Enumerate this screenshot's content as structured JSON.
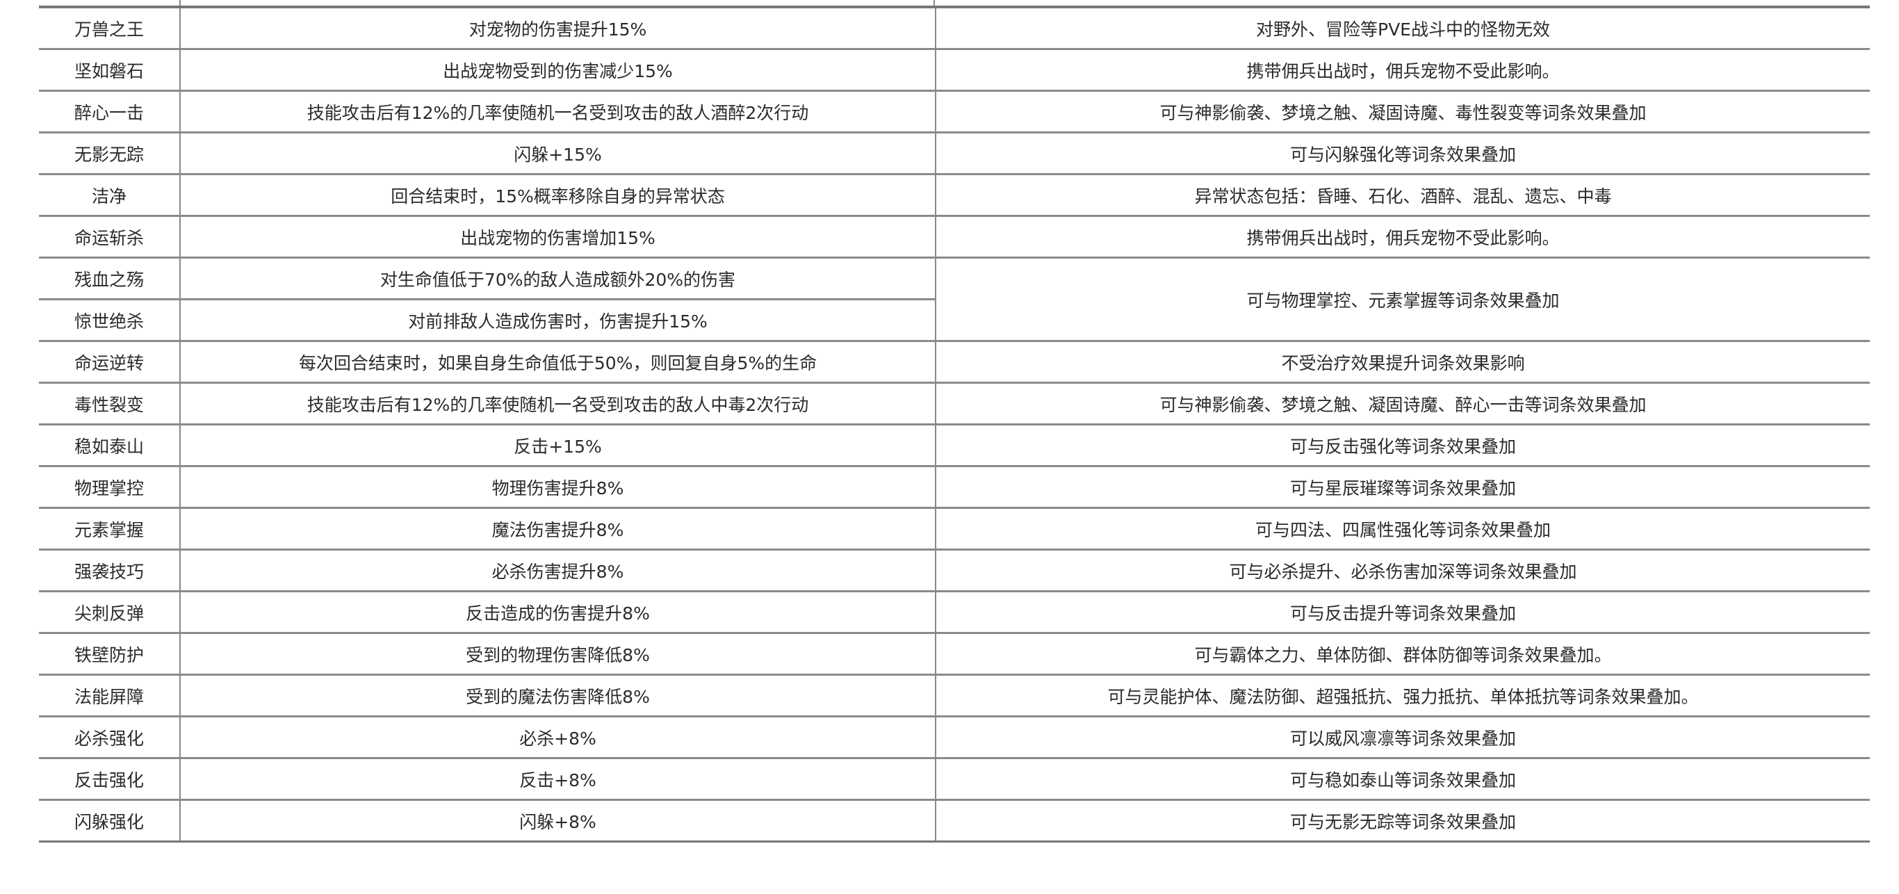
{
  "table": {
    "rows": [
      {
        "name": "万兽之王",
        "effect": "对宠物的伤害提升15%",
        "note": "对野外、冒险等PVE战斗中的怪物无效"
      },
      {
        "name": "坚如磐石",
        "effect": "出战宠物受到的伤害减少15%",
        "note": "携带佣兵出战时，佣兵宠物不受此影响。"
      },
      {
        "name": "醉心一击",
        "effect": "技能攻击后有12%的几率使随机一名受到攻击的敌人酒醉2次行动",
        "note": "可与神影偷袭、梦境之触、凝固诗魔、毒性裂变等词条效果叠加"
      },
      {
        "name": "无影无踪",
        "effect": "闪躲+15%",
        "note": "可与闪躲强化等词条效果叠加"
      },
      {
        "name": "洁净",
        "effect": "回合结束时，15%概率移除自身的异常状态",
        "note": "异常状态包括：昏睡、石化、酒醉、混乱、遗忘、中毒"
      },
      {
        "name": "命运斩杀",
        "effect": "出战宠物的伤害增加15%",
        "note": "携带佣兵出战时，佣兵宠物不受此影响。"
      },
      {
        "name": "残血之殇",
        "effect": "对生命值低于70%的敌人造成额外20%的伤害",
        "note": "可与物理掌控、元素掌握等词条效果叠加"
      },
      {
        "name": "惊世绝杀",
        "effect": "对前排敌人造成伤害时，伤害提升15%",
        "note": null
      },
      {
        "name": "命运逆转",
        "effect": "每次回合结束时，如果自身生命值低于50%，则回复自身5%的生命",
        "note": "不受治疗效果提升词条效果影响"
      },
      {
        "name": "毒性裂变",
        "effect": "技能攻击后有12%的几率使随机一名受到攻击的敌人中毒2次行动",
        "note": "可与神影偷袭、梦境之触、凝固诗魔、醉心一击等词条效果叠加"
      },
      {
        "name": "稳如泰山",
        "effect": "反击+15%",
        "note": "可与反击强化等词条效果叠加"
      },
      {
        "name": "物理掌控",
        "effect": "物理伤害提升8%",
        "note": "可与星辰璀璨等词条效果叠加"
      },
      {
        "name": "元素掌握",
        "effect": "魔法伤害提升8%",
        "note": "可与四法、四属性强化等词条效果叠加"
      },
      {
        "name": "强袭技巧",
        "effect": "必杀伤害提升8%",
        "note": "可与必杀提升、必杀伤害加深等词条效果叠加"
      },
      {
        "name": "尖刺反弹",
        "effect": "反击造成的伤害提升8%",
        "note": "可与反击提升等词条效果叠加"
      },
      {
        "name": "铁壁防护",
        "effect": "受到的物理伤害降低8%",
        "note": "可与霸体之力、单体防御、群体防御等词条效果叠加。"
      },
      {
        "name": "法能屏障",
        "effect": "受到的魔法伤害降低8%",
        "note": "可与灵能护体、魔法防御、超强抵抗、强力抵抗、单体抵抗等词条效果叠加。"
      },
      {
        "name": "必杀强化",
        "effect": "必杀+8%",
        "note": "可以威风凛凛等词条效果叠加"
      },
      {
        "name": "反击强化",
        "effect": "反击+8%",
        "note": "可与稳如泰山等词条效果叠加"
      },
      {
        "name": "闪躲强化",
        "effect": "闪躲+8%",
        "note": "可与无影无踪等词条效果叠加"
      }
    ]
  }
}
